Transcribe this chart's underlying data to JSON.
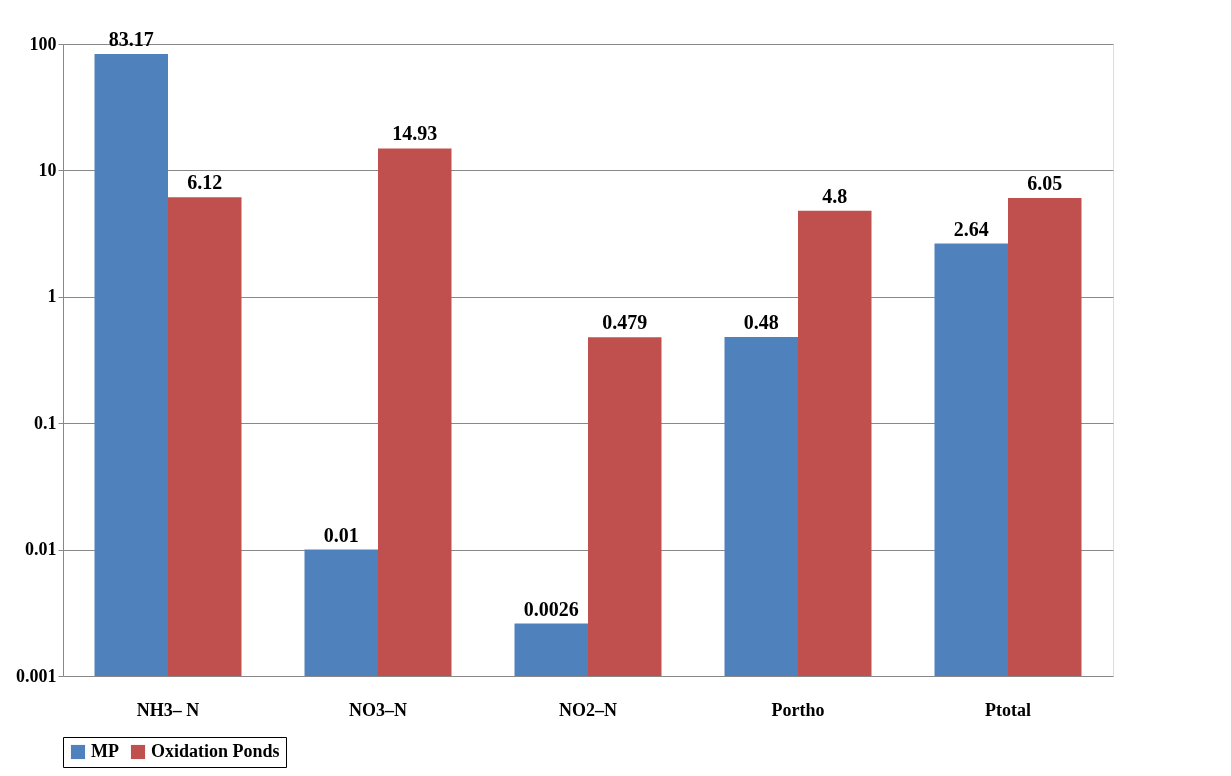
{
  "chart_data": {
    "type": "bar",
    "categories": [
      "NH3– N",
      "NO3–N",
      "NO2–N",
      "Portho",
      "Ptotal"
    ],
    "series": [
      {
        "name": "MP",
        "color": "#4f81bd",
        "values": [
          83.17,
          0.01,
          0.0026,
          0.48,
          2.64
        ]
      },
      {
        "name": "Oxidation Ponds",
        "color": "#c0504d",
        "values": [
          6.12,
          14.93,
          0.479,
          4.8,
          6.05
        ]
      }
    ],
    "log": true,
    "ylim": [
      0.001,
      100
    ],
    "yticks": [
      0.001,
      0.01,
      0.1,
      1,
      10,
      100
    ],
    "grid": "y",
    "legend": "bottom",
    "data_labels": true
  }
}
